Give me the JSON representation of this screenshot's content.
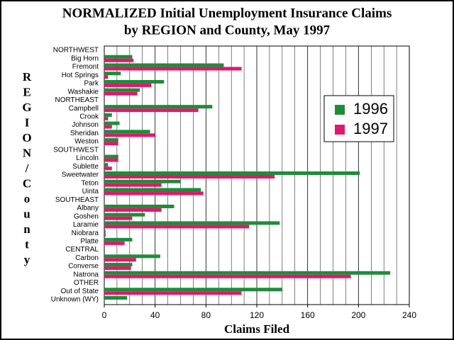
{
  "chart_data": {
    "type": "hbar",
    "title": "NORMALIZED Initial Unemployment Insurance Claims",
    "subtitle": "by REGION and County, May 1997",
    "x_label": "Claims Filed",
    "y_label": "REGION/County",
    "categories": [
      "NORTHWEST",
      "Big Horn",
      "Fremont",
      "Hot Springs",
      "Park",
      "Washakie",
      "NORTHEAST",
      "Campbell",
      "Crook",
      "Johnson",
      "Sheridan",
      "Weston",
      "SOUTHWEST",
      "Lincoln",
      "Sublette",
      "Sweetwater",
      "Teton",
      "Uinta",
      "SOUTHEAST",
      "Albany",
      "Goshen",
      "Laramie",
      "Niobrara",
      "Platte",
      "CENTRAL",
      "Carbon",
      "Converse",
      "Natrona",
      "OTHER",
      "Out of State",
      "Unknown (WY)"
    ],
    "series": [
      {
        "name": "1996",
        "color": "#1e8c3a",
        "values": [
          null,
          22,
          94,
          13,
          47,
          28,
          null,
          85,
          6,
          12,
          36,
          11,
          null,
          11,
          3,
          201,
          60,
          76,
          null,
          55,
          32,
          138,
          1,
          22,
          null,
          44,
          22,
          225,
          null,
          140,
          18
        ]
      },
      {
        "name": "1997",
        "color": "#e0186c",
        "values": [
          null,
          23,
          108,
          3,
          37,
          26,
          null,
          74,
          3,
          6,
          40,
          11,
          null,
          11,
          6,
          134,
          45,
          78,
          null,
          45,
          22,
          114,
          1,
          16,
          null,
          25,
          21,
          194,
          null,
          108,
          0
        ]
      }
    ],
    "xlim": [
      0,
      240
    ],
    "xticks": [
      0,
      40,
      80,
      120,
      160,
      200,
      240
    ],
    "grid": true,
    "legend": "right"
  }
}
